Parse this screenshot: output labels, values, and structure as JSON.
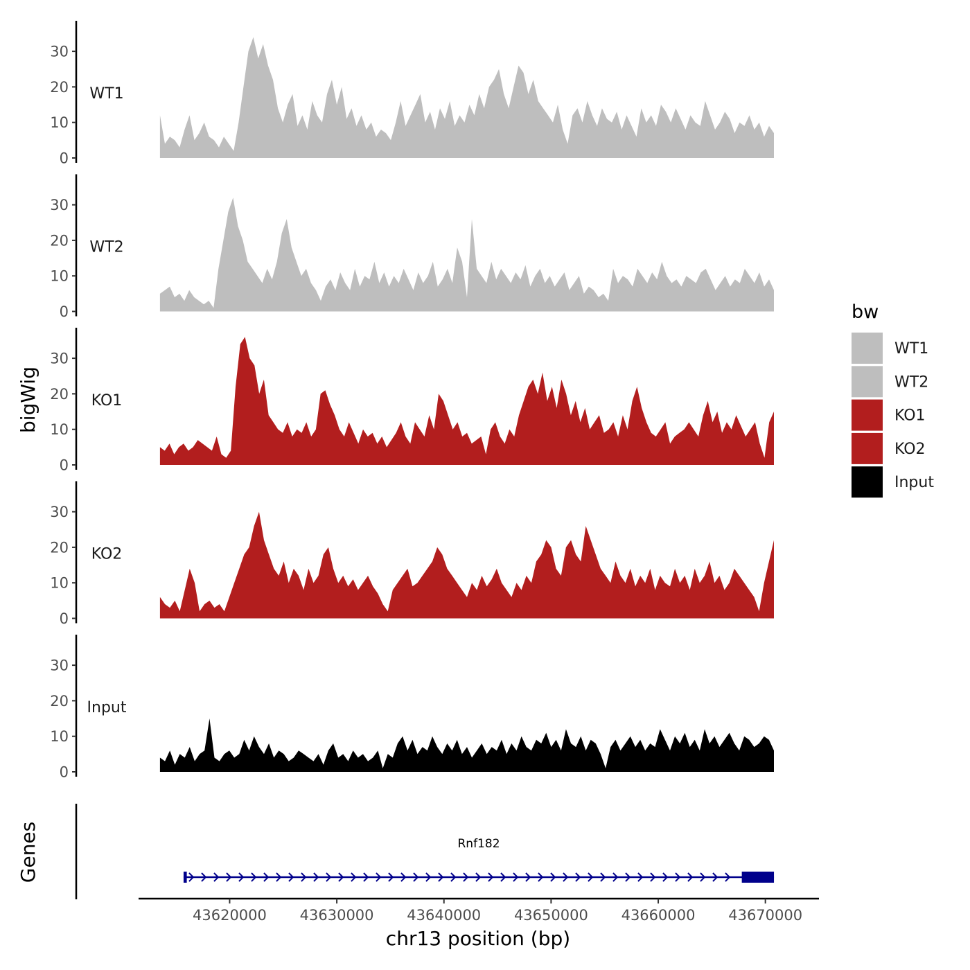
{
  "chart_data": {
    "type": "area",
    "ylabel": "bigWig",
    "xlabel": "chr13 position (bp)",
    "ylim": [
      0,
      38
    ],
    "yticks": [
      0,
      10,
      20,
      30
    ],
    "xlim": [
      43611500,
      43675000
    ],
    "xticks": [
      43620000,
      43630000,
      43640000,
      43650000,
      43660000,
      43670000
    ],
    "xtick_labels": [
      "43620000",
      "43630000",
      "43640000",
      "43650000",
      "43660000",
      "43670000"
    ],
    "x_start": 43613500,
    "x_end": 43670800,
    "legend": {
      "title": "bw",
      "position": "right",
      "entries": [
        {
          "name": "WT1",
          "color": "#bebebe"
        },
        {
          "name": "WT2",
          "color": "#bebebe"
        },
        {
          "name": "KO1",
          "color": "#b21e1e"
        },
        {
          "name": "KO2",
          "color": "#b21e1e"
        },
        {
          "name": "Input",
          "color": "#000000"
        }
      ]
    },
    "series": [
      {
        "name": "WT1",
        "color": "#bebebe",
        "values": [
          12,
          4,
          6,
          5,
          3,
          8,
          12,
          5,
          7,
          10,
          6,
          5,
          3,
          6,
          4,
          2,
          10,
          20,
          30,
          34,
          28,
          32,
          26,
          22,
          14,
          10,
          15,
          18,
          9,
          12,
          8,
          16,
          12,
          10,
          18,
          22,
          15,
          20,
          11,
          14,
          9,
          12,
          8,
          10,
          6,
          8,
          7,
          5,
          10,
          16,
          9,
          12,
          15,
          18,
          10,
          13,
          8,
          14,
          11,
          16,
          9,
          12,
          10,
          15,
          12,
          18,
          14,
          20,
          22,
          25,
          18,
          14,
          20,
          26,
          24,
          18,
          22,
          16,
          14,
          12,
          10,
          15,
          8,
          4,
          12,
          14,
          10,
          16,
          12,
          9,
          14,
          11,
          10,
          13,
          8,
          12,
          9,
          6,
          14,
          10,
          12,
          9,
          15,
          13,
          10,
          14,
          11,
          8,
          12,
          10,
          9,
          16,
          12,
          8,
          10,
          13,
          11,
          7,
          10,
          9,
          12,
          8,
          10,
          6,
          9,
          7
        ]
      },
      {
        "name": "WT2",
        "color": "#bebebe",
        "values": [
          5,
          6,
          7,
          4,
          5,
          3,
          6,
          4,
          3,
          2,
          3,
          1,
          12,
          20,
          28,
          32,
          24,
          20,
          14,
          12,
          10,
          8,
          12,
          9,
          14,
          22,
          26,
          18,
          14,
          10,
          12,
          8,
          6,
          3,
          7,
          9,
          6,
          11,
          8,
          6,
          12,
          7,
          10,
          9,
          14,
          8,
          11,
          7,
          10,
          8,
          12,
          9,
          6,
          11,
          8,
          10,
          14,
          7,
          9,
          12,
          8,
          18,
          14,
          4,
          26,
          12,
          10,
          8,
          14,
          9,
          12,
          10,
          8,
          11,
          9,
          13,
          7,
          10,
          12,
          8,
          10,
          7,
          9,
          11,
          6,
          8,
          10,
          5,
          7,
          6,
          4,
          5,
          3,
          12,
          8,
          10,
          9,
          7,
          12,
          10,
          8,
          11,
          9,
          14,
          10,
          8,
          9,
          7,
          10,
          9,
          8,
          11,
          12,
          9,
          6,
          8,
          10,
          7,
          9,
          8,
          12,
          10,
          8,
          11,
          7,
          9,
          6
        ]
      },
      {
        "name": "KO1",
        "color": "#b21e1e",
        "values": [
          5,
          4,
          6,
          3,
          5,
          6,
          4,
          5,
          7,
          6,
          5,
          4,
          8,
          3,
          2,
          4,
          22,
          34,
          36,
          30,
          28,
          20,
          24,
          14,
          12,
          10,
          9,
          12,
          8,
          10,
          9,
          12,
          8,
          10,
          20,
          21,
          17,
          14,
          10,
          8,
          12,
          9,
          6,
          10,
          8,
          9,
          6,
          8,
          5,
          7,
          9,
          12,
          8,
          6,
          12,
          10,
          8,
          14,
          10,
          20,
          18,
          14,
          10,
          12,
          8,
          9,
          6,
          7,
          8,
          3,
          10,
          12,
          8,
          6,
          10,
          8,
          14,
          18,
          22,
          24,
          20,
          26,
          18,
          22,
          16,
          24,
          20,
          14,
          18,
          12,
          16,
          10,
          12,
          14,
          9,
          10,
          12,
          8,
          14,
          10,
          18,
          22,
          16,
          12,
          9,
          8,
          10,
          12,
          6,
          8,
          9,
          10,
          12,
          10,
          8,
          14,
          18,
          12,
          15,
          9,
          12,
          10,
          14,
          11,
          8,
          10,
          12,
          6,
          2,
          12,
          15
        ]
      },
      {
        "name": "KO2",
        "color": "#b21e1e",
        "values": [
          6,
          4,
          3,
          5,
          2,
          8,
          14,
          10,
          2,
          4,
          5,
          3,
          4,
          2,
          6,
          10,
          14,
          18,
          20,
          26,
          30,
          22,
          18,
          14,
          12,
          16,
          10,
          14,
          12,
          8,
          14,
          10,
          12,
          18,
          20,
          14,
          10,
          12,
          9,
          11,
          8,
          10,
          12,
          9,
          7,
          4,
          2,
          8,
          10,
          12,
          14,
          9,
          10,
          12,
          14,
          16,
          20,
          18,
          14,
          12,
          10,
          8,
          6,
          10,
          8,
          12,
          9,
          11,
          14,
          10,
          8,
          6,
          10,
          8,
          12,
          10,
          16,
          18,
          22,
          20,
          14,
          12,
          20,
          22,
          18,
          16,
          26,
          22,
          18,
          14,
          12,
          10,
          16,
          12,
          10,
          14,
          9,
          12,
          10,
          14,
          8,
          12,
          10,
          9,
          14,
          10,
          12,
          8,
          14,
          10,
          12,
          16,
          10,
          12,
          8,
          10,
          14,
          12,
          10,
          8,
          6,
          2,
          10,
          16,
          22
        ]
      },
      {
        "name": "Input",
        "color": "#000000",
        "values": [
          4,
          3,
          6,
          2,
          5,
          4,
          7,
          3,
          5,
          6,
          15,
          4,
          3,
          5,
          6,
          4,
          5,
          9,
          6,
          10,
          7,
          5,
          8,
          4,
          6,
          5,
          3,
          4,
          6,
          5,
          4,
          3,
          5,
          2,
          6,
          8,
          4,
          5,
          3,
          6,
          4,
          5,
          3,
          4,
          6,
          1,
          5,
          4,
          8,
          10,
          6,
          9,
          5,
          7,
          6,
          10,
          7,
          5,
          8,
          6,
          9,
          5,
          7,
          4,
          6,
          8,
          5,
          7,
          6,
          9,
          5,
          8,
          6,
          10,
          7,
          6,
          9,
          8,
          11,
          7,
          9,
          6,
          12,
          8,
          7,
          10,
          6,
          9,
          8,
          5,
          1,
          7,
          9,
          6,
          8,
          10,
          7,
          9,
          6,
          8,
          7,
          12,
          9,
          6,
          10,
          8,
          11,
          7,
          9,
          6,
          12,
          8,
          10,
          7,
          9,
          11,
          8,
          6,
          10,
          9,
          7,
          8,
          10,
          9,
          6
        ]
      }
    ],
    "genes": [
      {
        "name": "Rnf182",
        "start": 43615700,
        "end": 43670800,
        "strand": "+",
        "exons": [
          [
            43615700,
            43616000
          ],
          [
            43667800,
            43670800
          ]
        ]
      }
    ],
    "genes_label": "Genes"
  }
}
